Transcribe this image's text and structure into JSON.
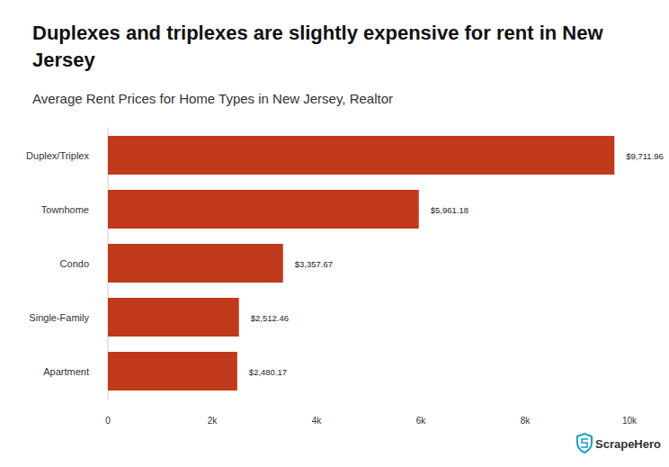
{
  "chart_data": {
    "type": "bar",
    "title": "Duplexes and triplexes are slightly expensive for rent in New Jersey",
    "subtitle": "Average Rent Prices for Home Types in New Jersey, Realtor",
    "source": "ScrapeHero",
    "categories": [
      "Duplex/Triplex",
      "Townhome",
      "Condo",
      "Single-Family",
      "Apartment"
    ],
    "values": [
      9711.96,
      5961.18,
      3357.67,
      2512.46,
      2480.17
    ],
    "value_labels": [
      "$9,711.96",
      "$5,961.18",
      "$3,357.67",
      "$2,512.46",
      "$2,480.17"
    ],
    "color": "#c0391b",
    "orientation": "horizontal",
    "data_labels": true,
    "grid": false,
    "xlim": [
      0,
      10000
    ],
    "xticks": [
      0,
      {
        "value": 2000,
        "label": "2k"
      },
      {
        "value": 4000,
        "label": "4k"
      },
      {
        "value": 6000,
        "label": "6k"
      },
      {
        "value": 8000,
        "label": "8k"
      },
      {
        "value": 10000,
        "label": "10k"
      }
    ]
  }
}
